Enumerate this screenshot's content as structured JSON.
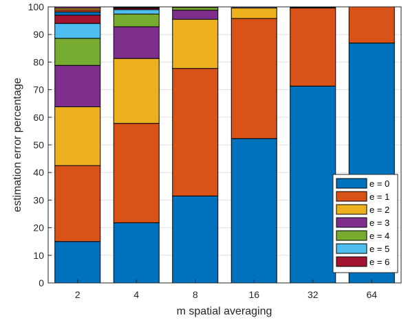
{
  "chart_data": {
    "type": "bar",
    "stacked": true,
    "categories": [
      "2",
      "4",
      "8",
      "16",
      "32",
      "64"
    ],
    "series": [
      {
        "name": "e = 0",
        "color": "#0072BD",
        "values": [
          15.0,
          21.8,
          31.5,
          52.3,
          71.3,
          86.9
        ]
      },
      {
        "name": "e = 1",
        "color": "#D95319",
        "values": [
          27.5,
          36.0,
          46.2,
          43.5,
          28.3,
          13.1
        ]
      },
      {
        "name": "e = 2",
        "color": "#EDB120",
        "values": [
          21.3,
          23.5,
          17.8,
          3.8,
          0.2,
          0.0
        ]
      },
      {
        "name": "e = 3",
        "color": "#7E2F8E",
        "values": [
          15.0,
          11.5,
          3.3,
          0.1,
          0.0,
          0.0
        ]
      },
      {
        "name": "e = 4",
        "color": "#77AC30",
        "values": [
          9.8,
          4.6,
          1.0,
          0.0,
          0.0,
          0.0
        ]
      },
      {
        "name": "e = 5",
        "color": "#4DBEEE",
        "values": [
          5.4,
          1.6,
          0.1,
          0.0,
          0.0,
          0.0
        ]
      },
      {
        "name": "e = 6",
        "color": "#A2142F",
        "values": [
          3.0,
          0.5,
          0.0,
          0.0,
          0.0,
          0.0
        ]
      },
      {
        "name": "",
        "color": "#0072BD",
        "values": [
          1.2,
          0.2,
          0.0,
          0.0,
          0.0,
          0.0
        ]
      },
      {
        "name": "",
        "color": "#D95319",
        "values": [
          0.7,
          0.1,
          0.0,
          0.0,
          0.0,
          0.0
        ]
      },
      {
        "name": "",
        "color": "#EDB120",
        "values": [
          0.6,
          0.1,
          0.0,
          0.0,
          0.0,
          0.0
        ]
      },
      {
        "name": "",
        "color": "#7E2F8E",
        "values": [
          0.5,
          0.1,
          0.0,
          0.0,
          0.0,
          0.0
        ]
      }
    ],
    "title": "",
    "xlabel": "m spatial averaging",
    "ylabel": "estimation error percentage",
    "ylim": [
      0,
      100
    ],
    "yticks": [
      "0",
      "10",
      "20",
      "30",
      "40",
      "50",
      "60",
      "70",
      "80",
      "90",
      "100"
    ],
    "grid": true,
    "legend_position": "bottom-right"
  }
}
